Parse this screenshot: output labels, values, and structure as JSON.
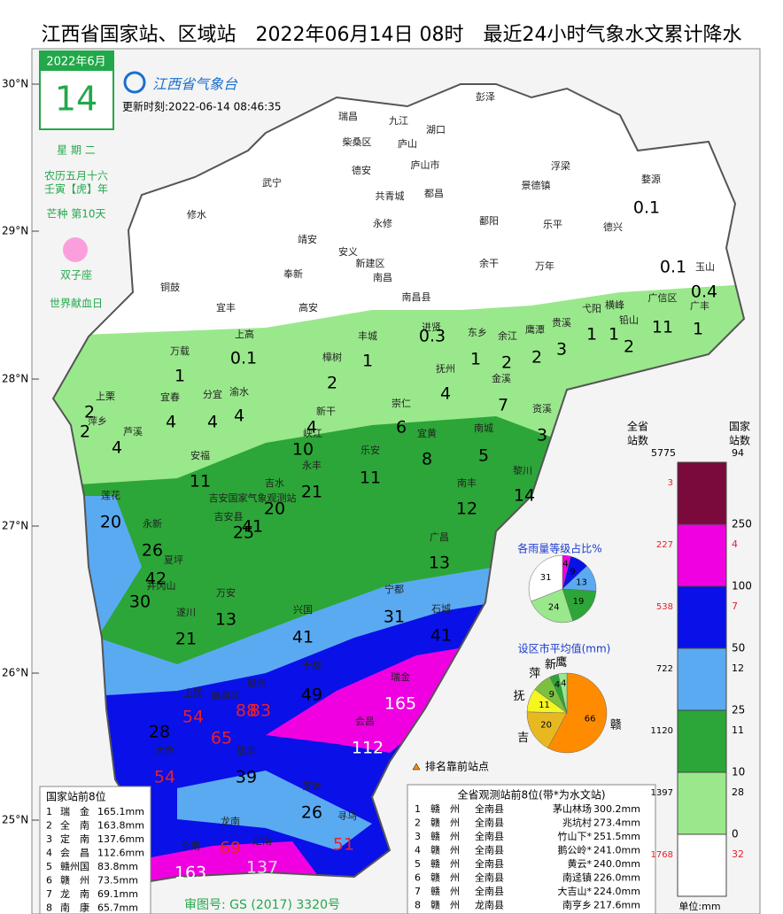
{
  "header": {
    "title": "江西省国家站、区域站　2022年06月14日 08时　最近24小时气象水文累计降水"
  },
  "calendar": {
    "month": "2022年6月",
    "day": "14",
    "weekday": "星 期 二",
    "lunar": "农历五月十六",
    "year": "壬寅【虎】年",
    "term": "芒种 第10天",
    "zodiac": "双子座",
    "event": "世界献血日"
  },
  "logo": "江西省气象台",
  "update": "更新时刻:2022-06-14 08:46:35",
  "lat_labels": [
    "30°N",
    "29°N",
    "28°N",
    "27°N",
    "26°N",
    "25°N"
  ],
  "places": [
    "彭泽",
    "瑞昌",
    "九江",
    "湖口",
    "柴桑区",
    "庐山",
    "德安",
    "庐山市",
    "武宁",
    "共青城",
    "都昌",
    "浮梁",
    "景德镇",
    "婺源",
    "修水",
    "永修",
    "鄱阳",
    "乐平",
    "德兴",
    "靖安",
    "安义",
    "新建区",
    "余干",
    "万年",
    "玉山",
    "奉新",
    "南昌",
    "南昌县",
    "铜鼓",
    "宜丰",
    "高安",
    "广信区",
    "横峰",
    "弋阳",
    "铅山",
    "广丰",
    "贵溪",
    "鹰潭",
    "余江",
    "东乡",
    "进贤",
    "丰城",
    "上高",
    "万载",
    "樟树",
    "抚州",
    "金溪",
    "宜春",
    "分宜",
    "渝水",
    "上栗",
    "萍乡",
    "芦溪",
    "新干",
    "崇仁",
    "资溪",
    "宜黄",
    "南城",
    "峡江",
    "安福",
    "乐安",
    "永丰",
    "吉水",
    "黎川",
    "南丰",
    "莲花",
    "吉安国家气象观测站",
    "吉安县",
    "永新",
    "广昌",
    "夏坪",
    "井冈山",
    "宁都",
    "万安",
    "遂川",
    "兴国",
    "石城",
    "于都",
    "瑞金",
    "上犹",
    "赣县区",
    "赣州",
    "会昌",
    "信丰",
    "大余",
    "安远",
    "寻乌",
    "龙南",
    "定南",
    "全南"
  ],
  "amounts": [
    {
      "value": 0.1
    },
    {
      "value": 0.1
    },
    {
      "value": 0.4
    },
    {
      "value": 1
    },
    {
      "value": 1
    },
    {
      "value": 2
    },
    {
      "value": 11
    },
    {
      "value": 1
    },
    {
      "value": 0.3
    },
    {
      "value": 1
    },
    {
      "value": 1
    },
    {
      "value": 2
    },
    {
      "value": 2
    },
    {
      "value": 3
    },
    {
      "value": 0.1
    },
    {
      "value": 1
    },
    {
      "value": 2
    },
    {
      "value": 4
    },
    {
      "value": 7
    },
    {
      "value": 2
    },
    {
      "value": 2
    },
    {
      "value": 4
    },
    {
      "value": 4
    },
    {
      "value": 4
    },
    {
      "value": 4
    },
    {
      "value": 4
    },
    {
      "value": 6
    },
    {
      "value": 8
    },
    {
      "value": 5
    },
    {
      "value": 3
    },
    {
      "value": 10
    },
    {
      "value": 11
    },
    {
      "value": 21
    },
    {
      "value": 11
    },
    {
      "value": 12
    },
    {
      "value": 14
    },
    {
      "value": 20
    },
    {
      "value": 25
    },
    {
      "value": 41
    },
    {
      "value": 20
    },
    {
      "value": 26
    },
    {
      "value": 42
    },
    {
      "value": 30
    },
    {
      "value": 13
    },
    {
      "value": 13
    },
    {
      "value": 21
    },
    {
      "value": 31
    },
    {
      "value": 41
    },
    {
      "value": 41
    },
    {
      "value": 49
    },
    {
      "value": 165,
      "color": "#ffffff"
    },
    {
      "value": 54,
      "color": "#e8202a"
    },
    {
      "value": 88,
      "color": "#e8202a"
    },
    {
      "value": 83,
      "color": "#e8202a"
    },
    {
      "value": 65,
      "color": "#e8202a"
    },
    {
      "value": 28
    },
    {
      "value": 112,
      "color": "#ffffff"
    },
    {
      "value": 54,
      "color": "#e8202a"
    },
    {
      "value": 39
    },
    {
      "value": 26
    },
    {
      "value": 51,
      "color": "#e8202a"
    },
    {
      "value": 69,
      "color": "#e8202a"
    },
    {
      "value": 163,
      "color": "#ffffff"
    },
    {
      "value": 137,
      "color": "#dddddd"
    }
  ],
  "legend": {
    "province_header": [
      "全省",
      "站数"
    ],
    "national_header": [
      "国家",
      "站数"
    ],
    "province_total": 5775,
    "national_total": 94,
    "unit": "单位:mm",
    "bands": [
      {
        "color": "#7a0a3c",
        "province": 3
      },
      {
        "color": "#f000e0",
        "province": 227,
        "national": 4
      },
      {
        "color": "#0a10e8",
        "province": 538,
        "national": 7
      },
      {
        "color": "#5aaaf2",
        "province": 722,
        "national": 12
      },
      {
        "color": "#2ca638",
        "province": 1120,
        "national": 11
      },
      {
        "color": "#9ae88c",
        "province": 1397,
        "national": 28
      },
      {
        "color": "#ffffff",
        "province": 1768,
        "national": 32
      }
    ],
    "thresholds": [
      250,
      100,
      50,
      25,
      10,
      0
    ]
  },
  "pie_levels": {
    "title": "各雨量等级占比%",
    "values": [
      0,
      4,
      9,
      13,
      19,
      24,
      31
    ],
    "colors": [
      "#7a0a3c",
      "#f000e0",
      "#0a10e8",
      "#5aaaf2",
      "#2ca638",
      "#9ae88c",
      "#ffffff"
    ]
  },
  "pie_cities": {
    "title": "设区市平均值(mm)",
    "names": [
      "赣",
      "吉",
      "抚",
      "萍",
      "新",
      "鹰"
    ],
    "values": [
      66,
      20,
      11,
      9,
      4,
      4
    ],
    "colors": [
      "#ff8c00",
      "#e8b820",
      "#f5f520",
      "#7cc040",
      "#2ca638",
      "#9ae88c"
    ]
  },
  "marker_note": "排名靠前站点",
  "national_top": {
    "title": "国家站前8位",
    "rows": [
      [
        "1",
        "瑞　金",
        "165.1mm"
      ],
      [
        "2",
        "全　南",
        "163.8mm"
      ],
      [
        "3",
        "定　南",
        "137.6mm"
      ],
      [
        "4",
        "会　昌",
        "112.6mm"
      ],
      [
        "5",
        "赣州国",
        "83.8mm"
      ],
      [
        "6",
        "赣　州",
        "73.5mm"
      ],
      [
        "7",
        "龙　南",
        "69.1mm"
      ],
      [
        "8",
        "南　康",
        "65.7mm"
      ]
    ]
  },
  "province_top": {
    "title": "全省观测站前8位(带*为水文站)",
    "rows": [
      [
        "1",
        "赣　州",
        "全南县",
        "茅山林场",
        "300.2mm"
      ],
      [
        "2",
        "赣　州",
        "全南县",
        "兆坑村",
        "273.4mm"
      ],
      [
        "3",
        "赣　州",
        "全南县",
        "竹山下*",
        "251.5mm"
      ],
      [
        "4",
        "赣　州",
        "全南县",
        "鹅公岭*",
        "241.0mm"
      ],
      [
        "5",
        "赣　州",
        "全南县",
        "黄云*",
        "240.0mm"
      ],
      [
        "6",
        "赣　州",
        "全南县",
        "南迳镇",
        "226.0mm"
      ],
      [
        "7",
        "赣　州",
        "全南县",
        "大吉山*",
        "224.0mm"
      ],
      [
        "8",
        "赣　州",
        "龙南县",
        "南亨乡",
        "217.6mm"
      ]
    ]
  },
  "approval": "审图号: GS (2017) 3320号"
}
